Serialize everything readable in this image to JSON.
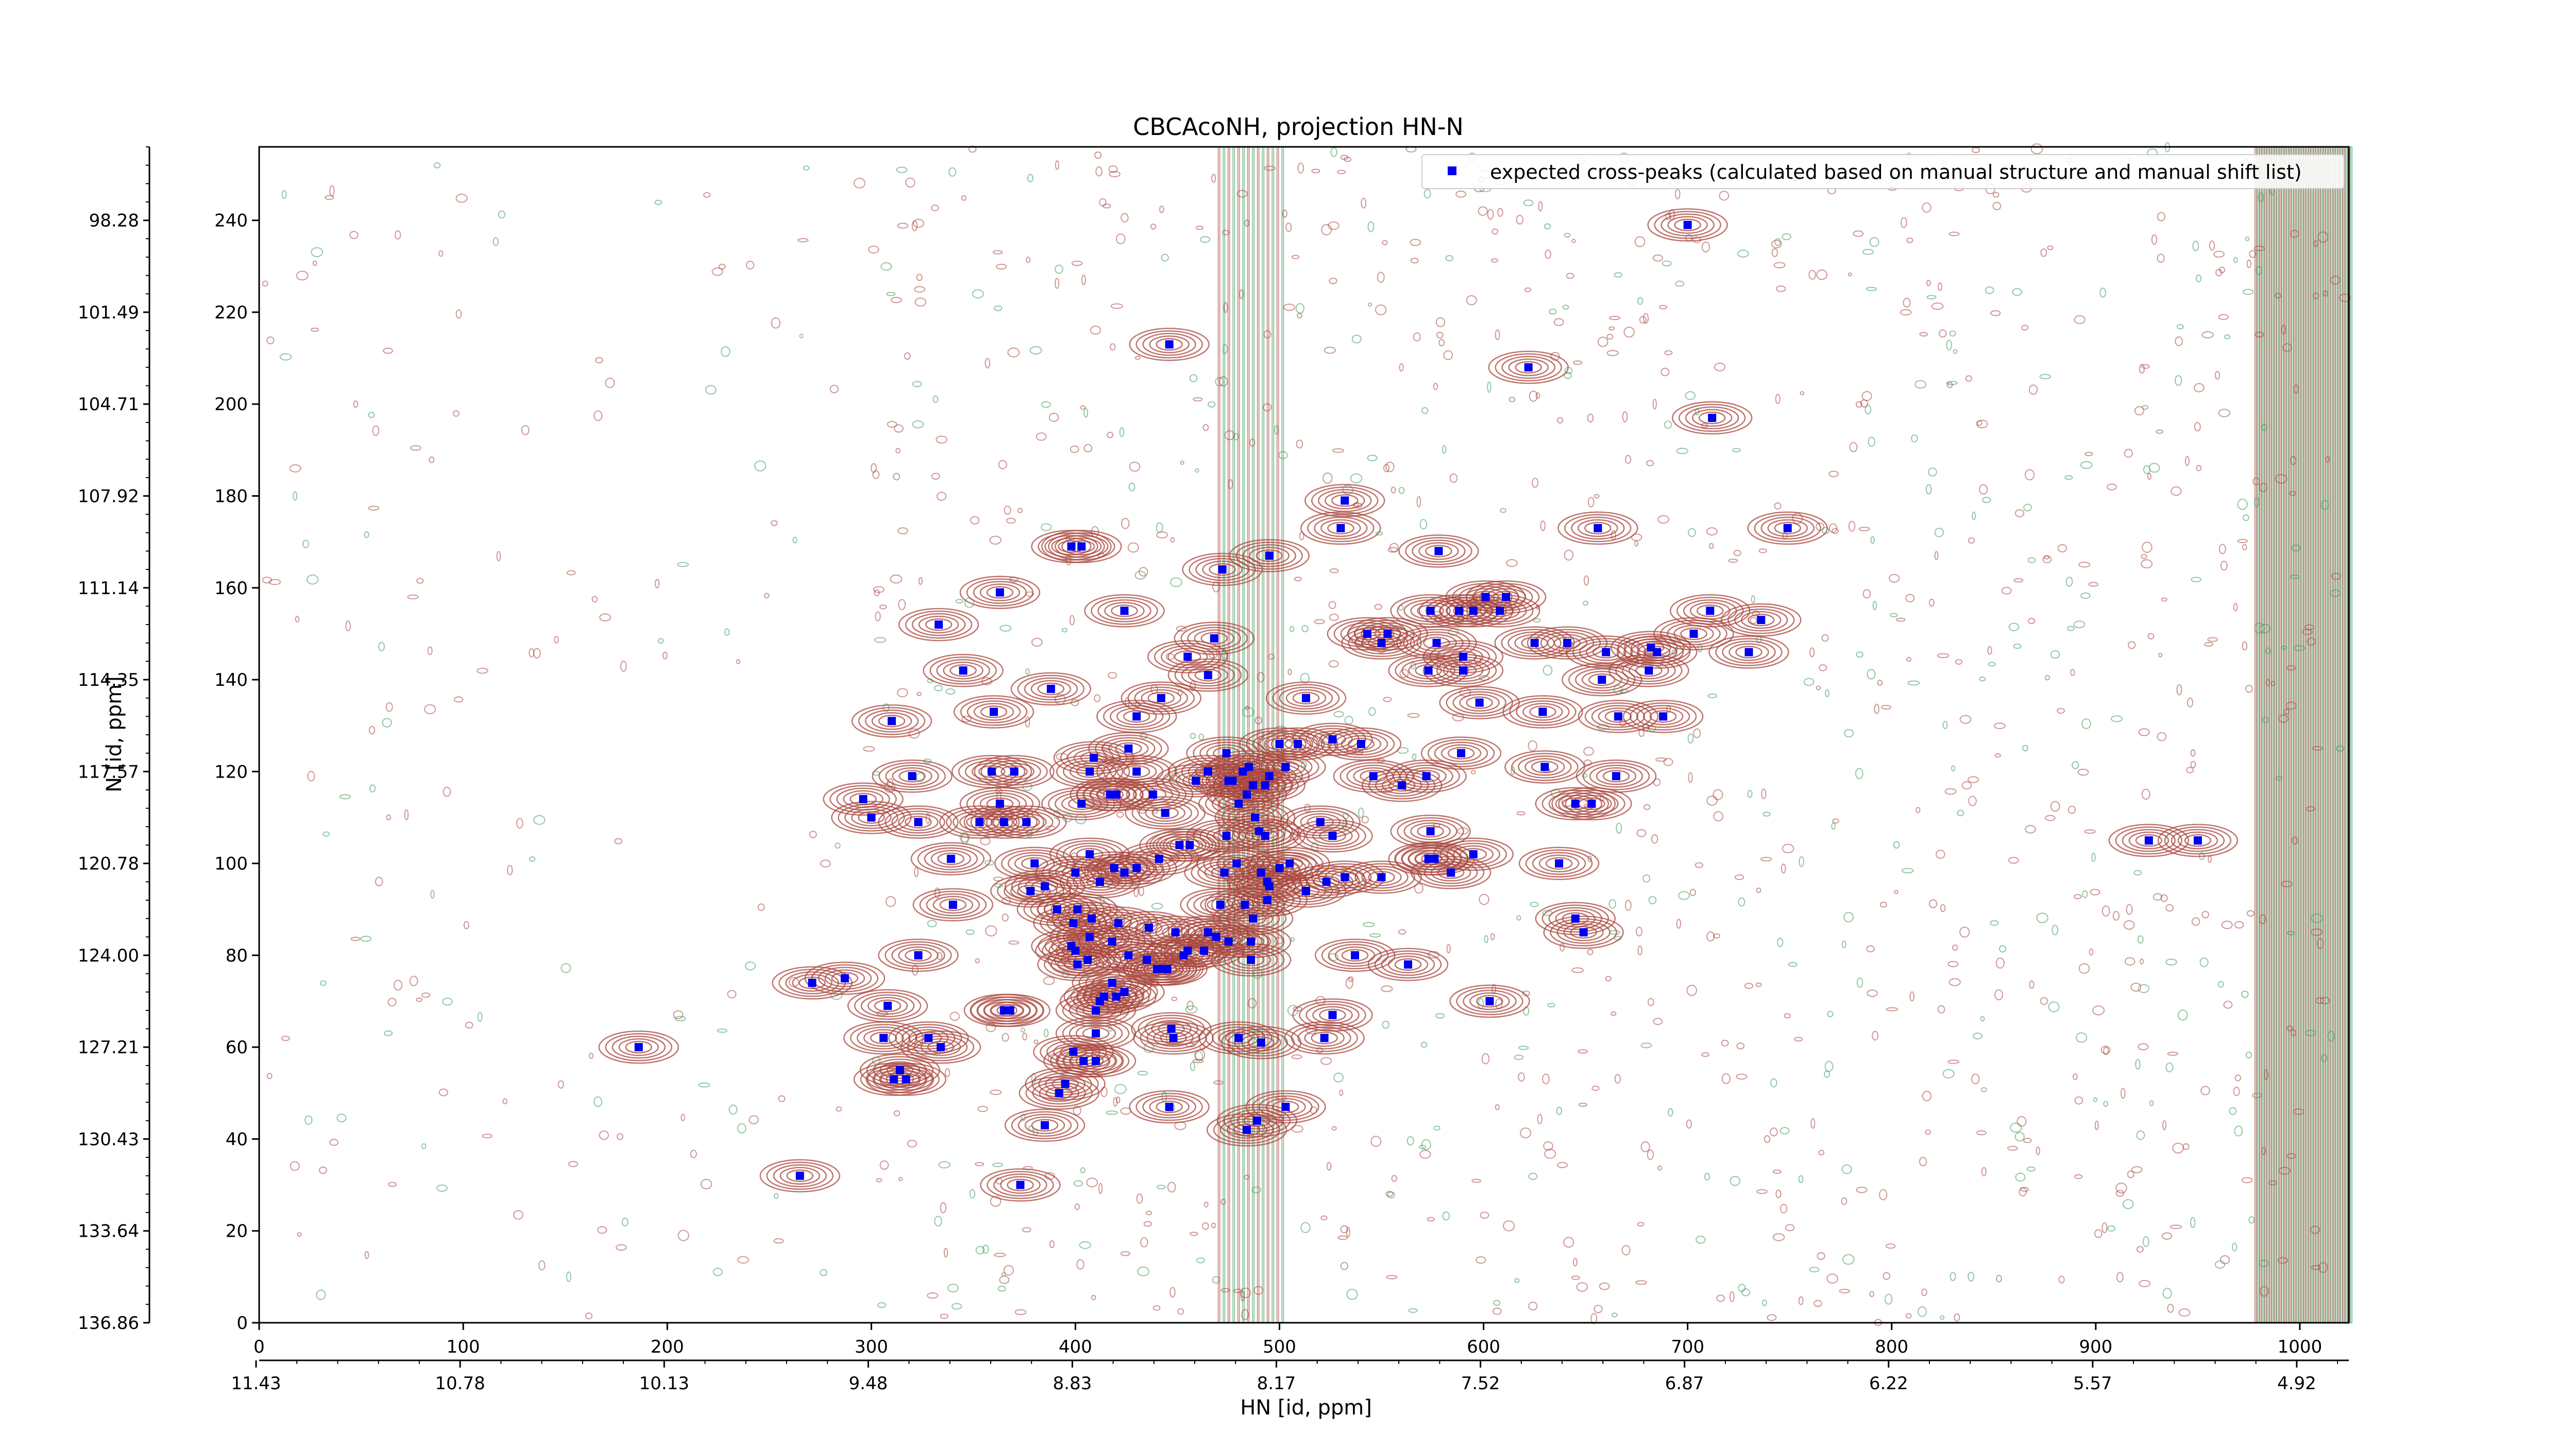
{
  "chart_data": {
    "type": "scatter",
    "title": "CBCAcoNH, projection HN-N",
    "xlabel": "HN [id, ppm]",
    "ylabel": "N [id, ppm]",
    "x_axis_index": {
      "range": [
        0,
        1024
      ],
      "ticks": [
        "0",
        "100",
        "200",
        "300",
        "400",
        "500",
        "600",
        "700",
        "800",
        "900",
        "1000"
      ]
    },
    "x_axis_ppm": {
      "ticks": [
        "11.43",
        "10.78",
        "10.13",
        "9.48",
        "8.83",
        "8.17",
        "7.52",
        "6.87",
        "6.22",
        "5.57",
        "4.92"
      ]
    },
    "y_axis_index": {
      "range": [
        0,
        256
      ],
      "ticks": [
        "0",
        "20",
        "40",
        "60",
        "80",
        "100",
        "120",
        "140",
        "160",
        "180",
        "200",
        "220",
        "240"
      ]
    },
    "y_axis_ppm": {
      "ticks": [
        "136.86",
        "133.64",
        "130.43",
        "127.21",
        "124.00",
        "120.78",
        "117.57",
        "114.35",
        "111.14",
        "107.92",
        "104.71",
        "101.49",
        "98.28"
      ]
    },
    "legend": {
      "position": "top-right",
      "entries": [
        "expected cross-peaks (calculated based on manual structure and manual shift list)"
      ]
    },
    "colors": {
      "marker": "#0000ee",
      "positive_contour": "#a8463c",
      "negative_contour": "#3a9a5a"
    },
    "series": [
      {
        "name": "expected cross-peaks (calculated based on manual structure and manual shift list)",
        "points": [
          [
            700,
            239
          ],
          [
            446,
            213
          ],
          [
            622,
            208
          ],
          [
            712,
            197
          ],
          [
            749,
            173
          ],
          [
            656,
            173
          ],
          [
            532,
            179
          ],
          [
            530,
            173
          ],
          [
            398,
            169
          ],
          [
            403,
            169
          ],
          [
            495,
            167
          ],
          [
            472,
            164
          ],
          [
            578,
            168
          ],
          [
            363,
            159
          ],
          [
            424,
            155
          ],
          [
            333,
            152
          ],
          [
            574,
            155
          ],
          [
            588,
            155
          ],
          [
            595,
            155
          ],
          [
            601,
            158
          ],
          [
            611,
            158
          ],
          [
            608,
            155
          ],
          [
            625,
            148
          ],
          [
            641,
            148
          ],
          [
            660,
            146
          ],
          [
            685,
            146
          ],
          [
            703,
            150
          ],
          [
            730,
            146
          ],
          [
            736,
            153
          ],
          [
            711,
            155
          ],
          [
            658,
            140
          ],
          [
            681,
            142
          ],
          [
            682,
            147
          ],
          [
            688,
            132
          ],
          [
            345,
            142
          ],
          [
            388,
            138
          ],
          [
            465,
            141
          ],
          [
            455,
            145
          ],
          [
            468,
            149
          ],
          [
            550,
            148
          ],
          [
            553,
            150
          ],
          [
            543,
            150
          ],
          [
            573,
            142
          ],
          [
            590,
            142
          ],
          [
            577,
            148
          ],
          [
            590,
            145
          ],
          [
            598,
            135
          ],
          [
            360,
            133
          ],
          [
            310,
            131
          ],
          [
            442,
            136
          ],
          [
            430,
            132
          ],
          [
            513,
            136
          ],
          [
            500,
            126
          ],
          [
            509,
            126
          ],
          [
            526,
            127
          ],
          [
            540,
            126
          ],
          [
            589,
            124
          ],
          [
            629,
            133
          ],
          [
            666,
            132
          ],
          [
            426,
            125
          ],
          [
            409,
            123
          ],
          [
            359,
            120
          ],
          [
            370,
            120
          ],
          [
            320,
            119
          ],
          [
            407,
            120
          ],
          [
            430,
            120
          ],
          [
            495,
            119
          ],
          [
            459,
            118
          ],
          [
            465,
            120
          ],
          [
            482,
            120
          ],
          [
            485,
            121
          ],
          [
            477,
            118
          ],
          [
            487,
            117
          ],
          [
            493,
            117
          ],
          [
            503,
            121
          ],
          [
            475,
            118
          ],
          [
            474,
            124
          ],
          [
            546,
            119
          ],
          [
            572,
            119
          ],
          [
            630,
            121
          ],
          [
            665,
            119
          ],
          [
            296,
            114
          ],
          [
            300,
            110
          ],
          [
            323,
            109
          ],
          [
            353,
            109
          ],
          [
            363,
            113
          ],
          [
            365,
            109
          ],
          [
            376,
            109
          ],
          [
            403,
            113
          ],
          [
            420,
            115
          ],
          [
            417,
            115
          ],
          [
            438,
            115
          ],
          [
            444,
            111
          ],
          [
            480,
            113
          ],
          [
            484,
            115
          ],
          [
            488,
            110
          ],
          [
            474,
            106
          ],
          [
            451,
            104
          ],
          [
            473,
            98
          ],
          [
            520,
            109
          ],
          [
            526,
            106
          ],
          [
            560,
            117
          ],
          [
            574,
            107
          ],
          [
            576,
            101
          ],
          [
            595,
            102
          ],
          [
            645,
            113
          ],
          [
            653,
            113
          ],
          [
            339,
            101
          ],
          [
            380,
            100
          ],
          [
            400,
            98
          ],
          [
            407,
            102
          ],
          [
            412,
            96
          ],
          [
            419,
            99
          ],
          [
            424,
            98
          ],
          [
            430,
            99
          ],
          [
            441,
            101
          ],
          [
            456,
            104
          ],
          [
            479,
            100
          ],
          [
            491,
            98
          ],
          [
            494,
            96
          ],
          [
            500,
            99
          ],
          [
            495,
            95
          ],
          [
            513,
            94
          ],
          [
            523,
            96
          ],
          [
            532,
            97
          ],
          [
            550,
            97
          ],
          [
            573,
            101
          ],
          [
            584,
            98
          ],
          [
            637,
            100
          ],
          [
            378,
            94
          ],
          [
            391,
            90
          ],
          [
            385,
            95
          ],
          [
            399,
            87
          ],
          [
            401,
            90
          ],
          [
            407,
            84
          ],
          [
            408,
            88
          ],
          [
            421,
            87
          ],
          [
            436,
            86
          ],
          [
            449,
            85
          ],
          [
            455,
            81
          ],
          [
            463,
            81
          ],
          [
            475,
            83
          ],
          [
            465,
            85
          ],
          [
            471,
            91
          ],
          [
            483,
            91
          ],
          [
            487,
            88
          ],
          [
            494,
            92
          ],
          [
            505,
            100
          ],
          [
            490,
            107
          ],
          [
            493,
            106
          ],
          [
            398,
            82
          ],
          [
            400,
            81
          ],
          [
            401,
            78
          ],
          [
            418,
            83
          ],
          [
            426,
            80
          ],
          [
            435,
            79
          ],
          [
            440,
            77
          ],
          [
            443,
            77
          ],
          [
            453,
            80
          ],
          [
            469,
            84
          ],
          [
            486,
            79
          ],
          [
            486,
            83
          ],
          [
            537,
            80
          ],
          [
            563,
            78
          ],
          [
            645,
            88
          ],
          [
            649,
            85
          ],
          [
            340,
            91
          ],
          [
            323,
            80
          ],
          [
            287,
            75
          ],
          [
            271,
            74
          ],
          [
            308,
            69
          ],
          [
            406,
            79
          ],
          [
            424,
            72
          ],
          [
            445,
            77
          ],
          [
            414,
            71
          ],
          [
            412,
            70
          ],
          [
            420,
            71
          ],
          [
            418,
            74
          ],
          [
            410,
            68
          ],
          [
            365,
            68
          ],
          [
            368,
            68
          ],
          [
            526,
            67
          ],
          [
            603,
            70
          ],
          [
            306,
            62
          ],
          [
            328,
            62
          ],
          [
            334,
            60
          ],
          [
            186,
            60
          ],
          [
            399,
            59
          ],
          [
            410,
            63
          ],
          [
            447,
            64
          ],
          [
            448,
            62
          ],
          [
            480,
            62
          ],
          [
            491,
            61
          ],
          [
            522,
            62
          ],
          [
            410,
            57
          ],
          [
            404,
            57
          ],
          [
            314,
            55
          ],
          [
            311,
            53
          ],
          [
            317,
            53
          ],
          [
            395,
            52
          ],
          [
            392,
            50
          ],
          [
            446,
            47
          ],
          [
            503,
            47
          ],
          [
            489,
            44
          ],
          [
            484,
            42
          ],
          [
            385,
            43
          ],
          [
            373,
            30
          ],
          [
            265,
            32
          ],
          [
            926,
            105
          ],
          [
            950,
            105
          ]
        ]
      }
    ]
  }
}
